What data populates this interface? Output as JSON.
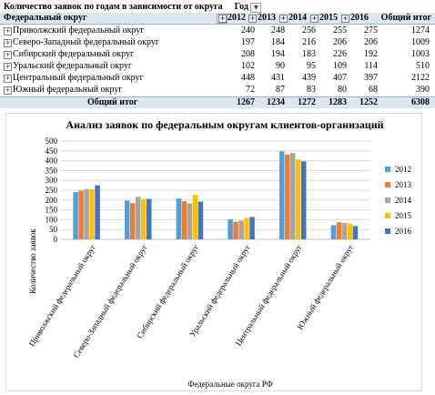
{
  "pivot": {
    "title": "Количество заявок по годам в зависимости от округа",
    "col_field": "Год",
    "row_field": "Федеральный округ",
    "years": [
      "2012",
      "2013",
      "2014",
      "2015",
      "2016"
    ],
    "grand_total_label": "Общий итог",
    "rows": [
      {
        "name": "Приволжский федеральный округ",
        "values": [
          "240",
          "248",
          "256",
          "255",
          "275"
        ],
        "total": "1274"
      },
      {
        "name": "Северо-Западный федеральный округ",
        "values": [
          "197",
          "184",
          "216",
          "206",
          "206"
        ],
        "total": "1009"
      },
      {
        "name": "Сибирский федеральный округ",
        "values": [
          "208",
          "194",
          "183",
          "226",
          "192"
        ],
        "total": "1003"
      },
      {
        "name": "Уральский федеральный округ",
        "values": [
          "102",
          "90",
          "95",
          "109",
          "114"
        ],
        "total": "510"
      },
      {
        "name": "Центральный федеральный округ",
        "values": [
          "448",
          "431",
          "439",
          "407",
          "397"
        ],
        "total": "2122"
      },
      {
        "name": "Южный федеральный округ",
        "values": [
          "72",
          "87",
          "83",
          "80",
          "68"
        ],
        "total": "390"
      }
    ],
    "totals_row": {
      "label": "Общий итог",
      "values": [
        "1267",
        "1234",
        "1272",
        "1283",
        "1252"
      ],
      "total": "6308"
    }
  },
  "chart_data": {
    "type": "bar",
    "title": "Анализ заявок по федеральным округам клиентов-организаций",
    "xlabel": "Федеральные округа РФ",
    "ylabel": "Количество заявок",
    "ylim": [
      0,
      500
    ],
    "yticks": [
      0,
      50,
      100,
      150,
      200,
      250,
      300,
      350,
      400,
      450,
      500
    ],
    "grid": true,
    "legend_position": "right",
    "categories": [
      "Приволжский федеральный округ",
      "Северо-Западный федеральный округ",
      "Сибирский федеральный округ",
      "Уральский федеральный округ",
      "Центральный федеральный округ",
      "Южный федеральный округ"
    ],
    "series": [
      {
        "name": "2012",
        "color": "#4f9fd9",
        "values": [
          240,
          197,
          208,
          102,
          448,
          72
        ]
      },
      {
        "name": "2013",
        "color": "#ed7d31",
        "values": [
          248,
          184,
          194,
          90,
          431,
          87
        ]
      },
      {
        "name": "2014",
        "color": "#a5a5a5",
        "values": [
          256,
          216,
          183,
          95,
          439,
          83
        ]
      },
      {
        "name": "2015",
        "color": "#ffc000",
        "values": [
          255,
          206,
          226,
          109,
          407,
          80
        ]
      },
      {
        "name": "2016",
        "color": "#4472c4",
        "values": [
          275,
          206,
          192,
          114,
          397,
          68
        ]
      }
    ]
  }
}
